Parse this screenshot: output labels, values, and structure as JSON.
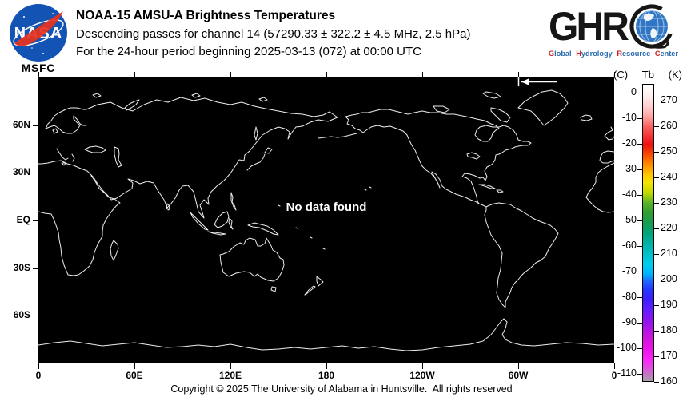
{
  "colors": {
    "map-bg": "#000000",
    "coastline": "#ededed",
    "nasa-blue": "#1353b4",
    "nasa-red": "#e8321e",
    "ghrc-blue": "#2a6bb0",
    "ghrc-red": "#cc2222",
    "globe-blue": "#2f76c4"
  },
  "header": {
    "nasa_logo": {
      "text": "NASA",
      "caption": "MSFC"
    },
    "title": "NOAA-15 AMSU-A Brightness Temperatures",
    "subtitle1": "Descending passes for channel 14 (57290.33 ± 322.2 ± 4.5 MHz, 2.5 hPa)",
    "subtitle2": "For the 24-hour period beginning 2025-03-13 (072) at 00:00 UTC",
    "ghrc_logo": {
      "letters": "GHR",
      "caption_words": [
        "Global",
        "Hydrology",
        "Resource",
        "Center"
      ]
    }
  },
  "map": {
    "no_data_text": "No data found",
    "lat_ticks": [
      {
        "value": 60,
        "label": "60N"
      },
      {
        "value": 30,
        "label": "30N"
      },
      {
        "value": 0,
        "label": "EQ"
      },
      {
        "value": -30,
        "label": "30S"
      },
      {
        "value": -60,
        "label": "60S"
      }
    ],
    "lon_ticks": [
      {
        "value": 0,
        "label": "0"
      },
      {
        "value": 60,
        "label": "60E"
      },
      {
        "value": 120,
        "label": "120E"
      },
      {
        "value": 180,
        "label": "180"
      },
      {
        "value": 240,
        "label": "120W"
      },
      {
        "value": 300,
        "label": "60W"
      },
      {
        "value": 360,
        "label": "0"
      }
    ]
  },
  "colorbar": {
    "unit_left": "(C)",
    "unit_center": "Tb",
    "unit_right": "(K)",
    "kelvin_ticks": [
      270,
      260,
      250,
      240,
      230,
      220,
      210,
      200,
      190,
      180,
      170,
      160
    ],
    "celsius_ticks": [
      0,
      -10,
      -20,
      -30,
      -40,
      -50,
      -60,
      -70,
      -80,
      -90,
      -100,
      -110
    ],
    "gradient_stops": [
      {
        "k": 276.5,
        "color": "#ffffff"
      },
      {
        "k": 272,
        "color": "#ffecec"
      },
      {
        "k": 268,
        "color": "#ffd0d0"
      },
      {
        "k": 264,
        "color": "#ffa4a4"
      },
      {
        "k": 260,
        "color": "#fb6060"
      },
      {
        "k": 256,
        "color": "#f73030"
      },
      {
        "k": 253,
        "color": "#ee1111"
      },
      {
        "k": 249,
        "color": "#f84b00"
      },
      {
        "k": 245,
        "color": "#ff8c00"
      },
      {
        "k": 241,
        "color": "#ffc800"
      },
      {
        "k": 238,
        "color": "#f5e400"
      },
      {
        "k": 234,
        "color": "#c0d800"
      },
      {
        "k": 230,
        "color": "#58b428"
      },
      {
        "k": 226,
        "color": "#2f9f2f"
      },
      {
        "k": 222,
        "color": "#179d52"
      },
      {
        "k": 218,
        "color": "#00a47c"
      },
      {
        "k": 214,
        "color": "#00b2a4"
      },
      {
        "k": 210,
        "color": "#00bfc8"
      },
      {
        "k": 206,
        "color": "#00cfee"
      },
      {
        "k": 202,
        "color": "#00b4ff"
      },
      {
        "k": 199,
        "color": "#1e64ff"
      },
      {
        "k": 196,
        "color": "#2438ff"
      },
      {
        "k": 192,
        "color": "#3c1eff"
      },
      {
        "k": 188,
        "color": "#641eff"
      },
      {
        "k": 184,
        "color": "#8c14f0"
      },
      {
        "k": 180,
        "color": "#b414e6"
      },
      {
        "k": 176,
        "color": "#d714dc"
      },
      {
        "k": 172,
        "color": "#ee14ee"
      },
      {
        "k": 168,
        "color": "#fa28fa"
      },
      {
        "k": 164,
        "color": "#d35fd3"
      },
      {
        "k": 160,
        "color": "#a8a0a8"
      }
    ]
  },
  "footer": {
    "copyright": "Copyright © 2025 The University of Alabama in Huntsville.  All rights reserved"
  }
}
